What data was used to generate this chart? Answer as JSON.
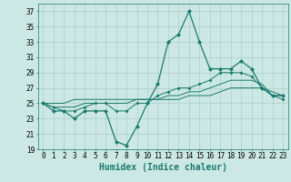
{
  "xlabel": "Humidex (Indice chaleur)",
  "x": [
    0,
    1,
    2,
    3,
    4,
    5,
    6,
    7,
    8,
    9,
    10,
    11,
    12,
    13,
    14,
    15,
    16,
    17,
    18,
    19,
    20,
    21,
    22,
    23
  ],
  "line1": [
    25,
    24,
    24,
    23,
    24,
    24,
    24,
    20,
    19.5,
    22,
    25,
    27.5,
    33,
    34,
    37,
    33,
    29.5,
    29.5,
    29.5,
    30.5,
    29.5,
    27,
    26,
    26
  ],
  "line2": [
    25,
    24.5,
    24,
    24,
    24.5,
    25,
    25,
    24,
    24,
    25,
    25,
    26,
    26.5,
    27,
    27,
    27.5,
    28,
    29,
    29,
    29,
    28.5,
    27,
    26,
    25.5
  ],
  "line3": [
    25,
    24.5,
    24.5,
    24.5,
    25,
    25,
    25,
    25,
    25,
    25.5,
    25.5,
    25.5,
    26,
    26,
    26.5,
    26.5,
    27,
    27.5,
    28,
    28,
    28,
    27.5,
    26,
    26
  ],
  "line4": [
    25,
    25,
    25,
    25.5,
    25.5,
    25.5,
    25.5,
    25.5,
    25.5,
    25.5,
    25.5,
    25.5,
    25.5,
    25.5,
    26,
    26,
    26,
    26.5,
    27,
    27,
    27,
    27,
    26.5,
    26
  ],
  "color": "#1a7a6e",
  "bg_color": "#cce8e4",
  "grid_color": "#aacfca",
  "ylim": [
    19,
    38
  ],
  "yticks": [
    19,
    21,
    23,
    25,
    27,
    29,
    31,
    33,
    35,
    37
  ],
  "xticks": [
    0,
    1,
    2,
    3,
    4,
    5,
    6,
    7,
    8,
    9,
    10,
    11,
    12,
    13,
    14,
    15,
    16,
    17,
    18,
    19,
    20,
    21,
    22,
    23
  ],
  "xlabel_fontsize": 7,
  "tick_fontsize": 5.5,
  "lw_main": 0.9,
  "lw_thin": 0.7,
  "markersize": 2.5
}
